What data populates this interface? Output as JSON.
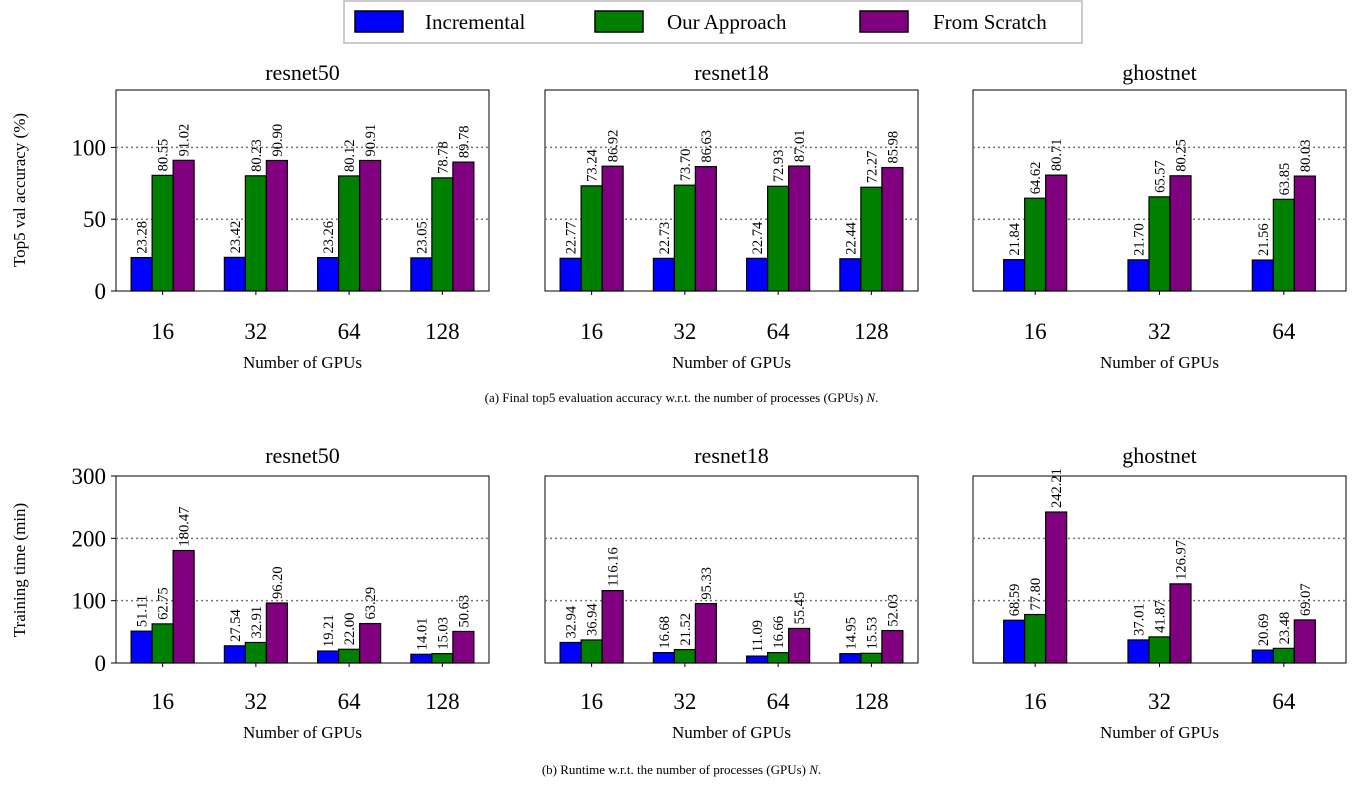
{
  "legend": {
    "items": [
      {
        "label": "Incremental",
        "color": "#0000ff"
      },
      {
        "label": "Our Approach",
        "color": "#008000"
      },
      {
        "label": "From Scratch",
        "color": "#800080"
      }
    ]
  },
  "captions": {
    "a_prefix": "(a) Final top5 evaluation accuracy w.r.t. the number of processes (GPUs) ",
    "a_var": "N",
    "a_suffix": ".",
    "b_prefix": "(b) Runtime w.r.t. the number of processes (GPUs) ",
    "b_var": "N",
    "b_suffix": "."
  },
  "chart_data": [
    {
      "type": "bar",
      "row": "accuracy",
      "title": "resnet50",
      "xlabel": "Number of GPUs",
      "ylabel": "Top5 val accuracy (%)",
      "ylim": [
        0,
        140
      ],
      "yticks": [
        0,
        50,
        100
      ],
      "grid": [
        50,
        100
      ],
      "categories": [
        "16",
        "32",
        "64",
        "128"
      ],
      "series": [
        {
          "name": "Incremental",
          "values": [
            23.28,
            23.42,
            23.26,
            23.05
          ],
          "labels": [
            "23.28",
            "23.42",
            "23.26",
            "23.05"
          ]
        },
        {
          "name": "Our Approach",
          "values": [
            80.55,
            80.23,
            80.12,
            78.78
          ],
          "labels": [
            "80.55",
            "80.23",
            "80.12",
            "78.78"
          ]
        },
        {
          "name": "From Scratch",
          "values": [
            91.02,
            90.9,
            90.91,
            89.78
          ],
          "labels": [
            "91.02",
            "90.90",
            "90.91",
            "89.78"
          ]
        }
      ]
    },
    {
      "type": "bar",
      "row": "accuracy",
      "title": "resnet18",
      "xlabel": "Number of GPUs",
      "ylabel": "",
      "ylim": [
        0,
        140
      ],
      "yticks": [
        0,
        50,
        100
      ],
      "grid": [
        50,
        100
      ],
      "categories": [
        "16",
        "32",
        "64",
        "128"
      ],
      "series": [
        {
          "name": "Incremental",
          "values": [
            22.77,
            22.73,
            22.74,
            22.44
          ],
          "labels": [
            "22.77",
            "22.73",
            "22.74",
            "22.44"
          ]
        },
        {
          "name": "Our Approach",
          "values": [
            73.24,
            73.7,
            72.93,
            72.27
          ],
          "labels": [
            "73.24",
            "73.70",
            "72.93",
            "72.27"
          ]
        },
        {
          "name": "From Scratch",
          "values": [
            86.92,
            86.63,
            87.01,
            85.98
          ],
          "labels": [
            "86.92",
            "86.63",
            "87.01",
            "85.98"
          ]
        }
      ]
    },
    {
      "type": "bar",
      "row": "accuracy",
      "title": "ghostnet",
      "xlabel": "Number of GPUs",
      "ylabel": "",
      "ylim": [
        0,
        140
      ],
      "yticks": [
        0,
        50,
        100
      ],
      "grid": [
        50,
        100
      ],
      "categories": [
        "16",
        "32",
        "64"
      ],
      "series": [
        {
          "name": "Incremental",
          "values": [
            21.84,
            21.7,
            21.56
          ],
          "labels": [
            "21.84",
            "21.70",
            "21.56"
          ]
        },
        {
          "name": "Our Approach",
          "values": [
            64.62,
            65.57,
            63.85
          ],
          "labels": [
            "64.62",
            "65.57",
            "63.85"
          ]
        },
        {
          "name": "From Scratch",
          "values": [
            80.71,
            80.25,
            80.03
          ],
          "labels": [
            "80.71",
            "80.25",
            "80.03"
          ]
        }
      ]
    },
    {
      "type": "bar",
      "row": "runtime",
      "title": "resnet50",
      "xlabel": "Number of GPUs",
      "ylabel": "Training time (min)",
      "ylim": [
        0,
        300
      ],
      "yticks": [
        0,
        100,
        200,
        300
      ],
      "grid": [
        100,
        200
      ],
      "categories": [
        "16",
        "32",
        "64",
        "128"
      ],
      "series": [
        {
          "name": "Incremental",
          "values": [
            51.11,
            27.54,
            19.21,
            14.01
          ],
          "labels": [
            "51.11",
            "27.54",
            "19.21",
            "14.01"
          ]
        },
        {
          "name": "Our Approach",
          "values": [
            62.75,
            32.91,
            22.0,
            15.03
          ],
          "labels": [
            "62.75",
            "32.91",
            "22.00",
            "15.03"
          ]
        },
        {
          "name": "From Scratch",
          "values": [
            180.47,
            96.2,
            63.29,
            50.63
          ],
          "labels": [
            "180.47",
            "96.20",
            "63.29",
            "50.63"
          ]
        }
      ]
    },
    {
      "type": "bar",
      "row": "runtime",
      "title": "resnet18",
      "xlabel": "Number of GPUs",
      "ylabel": "",
      "ylim": [
        0,
        300
      ],
      "yticks": [
        0,
        100,
        200,
        300
      ],
      "grid": [
        100,
        200
      ],
      "categories": [
        "16",
        "32",
        "64",
        "128"
      ],
      "series": [
        {
          "name": "Incremental",
          "values": [
            32.94,
            16.68,
            11.09,
            14.95
          ],
          "labels": [
            "32.94",
            "16.68",
            "11.09",
            "14.95"
          ]
        },
        {
          "name": "Our Approach",
          "values": [
            36.94,
            21.52,
            16.66,
            15.53
          ],
          "labels": [
            "36.94",
            "21.52",
            "16.66",
            "15.53"
          ]
        },
        {
          "name": "From Scratch",
          "values": [
            116.16,
            95.33,
            55.45,
            52.03
          ],
          "labels": [
            "116.16",
            "95.33",
            "55.45",
            "52.03"
          ]
        }
      ]
    },
    {
      "type": "bar",
      "row": "runtime",
      "title": "ghostnet",
      "xlabel": "Number of GPUs",
      "ylabel": "",
      "ylim": [
        0,
        300
      ],
      "yticks": [
        0,
        100,
        200,
        300
      ],
      "grid": [
        100,
        200
      ],
      "categories": [
        "16",
        "32",
        "64"
      ],
      "series": [
        {
          "name": "Incremental",
          "values": [
            68.59,
            37.01,
            20.69
          ],
          "labels": [
            "68.59",
            "37.01",
            "20.69"
          ]
        },
        {
          "name": "Our Approach",
          "values": [
            77.8,
            41.87,
            23.48
          ],
          "labels": [
            "77.80",
            "41.87",
            "23.48"
          ]
        },
        {
          "name": "From Scratch",
          "values": [
            242.21,
            126.97,
            69.07
          ],
          "labels": [
            "242.21",
            "126.97",
            "69.07"
          ]
        }
      ]
    }
  ]
}
